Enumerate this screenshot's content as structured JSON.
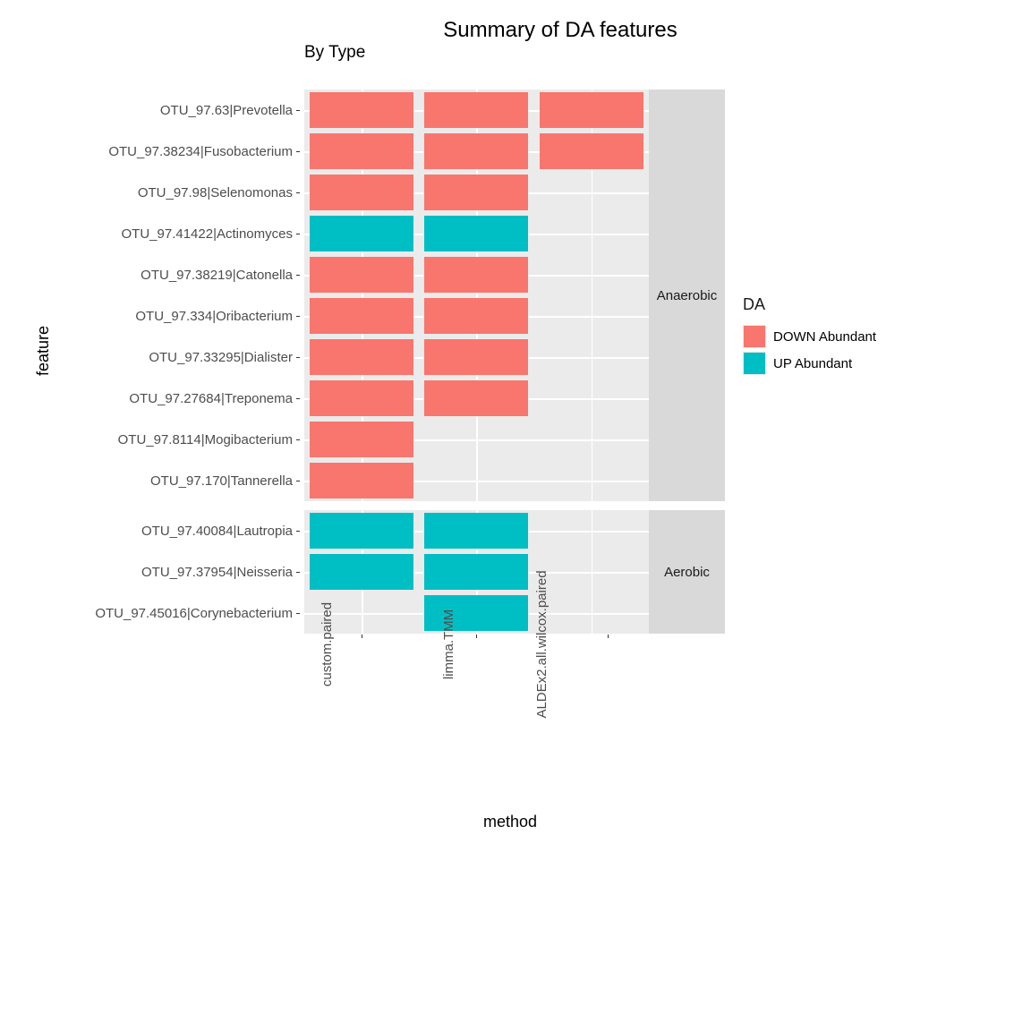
{
  "title": "Summary of DA features",
  "subtitle": "By Type",
  "yaxis_label": "feature",
  "xaxis_label": "method",
  "title_fontsize": 24,
  "subtitle_fontsize": 19,
  "axis_title_fontsize": 18,
  "tick_fontsize": 15,
  "strip_fontsize": 15,
  "colors": {
    "down": "#f8766d",
    "up": "#00bfc4",
    "panel_bg": "#ebebeb",
    "strip_bg": "#d9d9d9",
    "grid": "#ffffff",
    "text_dark": "#1a1a1a",
    "text_grey": "#4d4d4d"
  },
  "methods": [
    "custom.paired",
    "limma.TMM",
    "ALDEx2.all.wilcox.paired"
  ],
  "legend": {
    "title": "DA",
    "items": [
      {
        "label": "DOWN Abundant",
        "color_key": "down"
      },
      {
        "label": "UP Abundant",
        "color_key": "up"
      }
    ]
  },
  "facets": [
    {
      "strip": "Anaerobic",
      "rows": [
        {
          "label": "OTU_97.63|Prevotella",
          "cells": [
            "down",
            "down",
            "down"
          ]
        },
        {
          "label": "OTU_97.38234|Fusobacterium",
          "cells": [
            "down",
            "down",
            "down"
          ]
        },
        {
          "label": "OTU_97.98|Selenomonas",
          "cells": [
            "down",
            "down",
            null
          ]
        },
        {
          "label": "OTU_97.41422|Actinomyces",
          "cells": [
            "up",
            "up",
            null
          ]
        },
        {
          "label": "OTU_97.38219|Catonella",
          "cells": [
            "down",
            "down",
            null
          ]
        },
        {
          "label": "OTU_97.334|Oribacterium",
          "cells": [
            "down",
            "down",
            null
          ]
        },
        {
          "label": "OTU_97.33295|Dialister",
          "cells": [
            "down",
            "down",
            null
          ]
        },
        {
          "label": "OTU_97.27684|Treponema",
          "cells": [
            "down",
            "down",
            null
          ]
        },
        {
          "label": "OTU_97.8114|Mogibacterium",
          "cells": [
            "down",
            null,
            null
          ]
        },
        {
          "label": "OTU_97.170|Tannerella",
          "cells": [
            "down",
            null,
            null
          ]
        }
      ]
    },
    {
      "strip": "Aerobic",
      "rows": [
        {
          "label": "OTU_97.40084|Lautropia",
          "cells": [
            "up",
            "up",
            null
          ]
        },
        {
          "label": "OTU_97.37954|Neisseria",
          "cells": [
            "up",
            "up",
            null
          ]
        },
        {
          "label": "OTU_97.45016|Corynebacterium",
          "cells": [
            null,
            "up",
            null
          ]
        }
      ]
    }
  ]
}
